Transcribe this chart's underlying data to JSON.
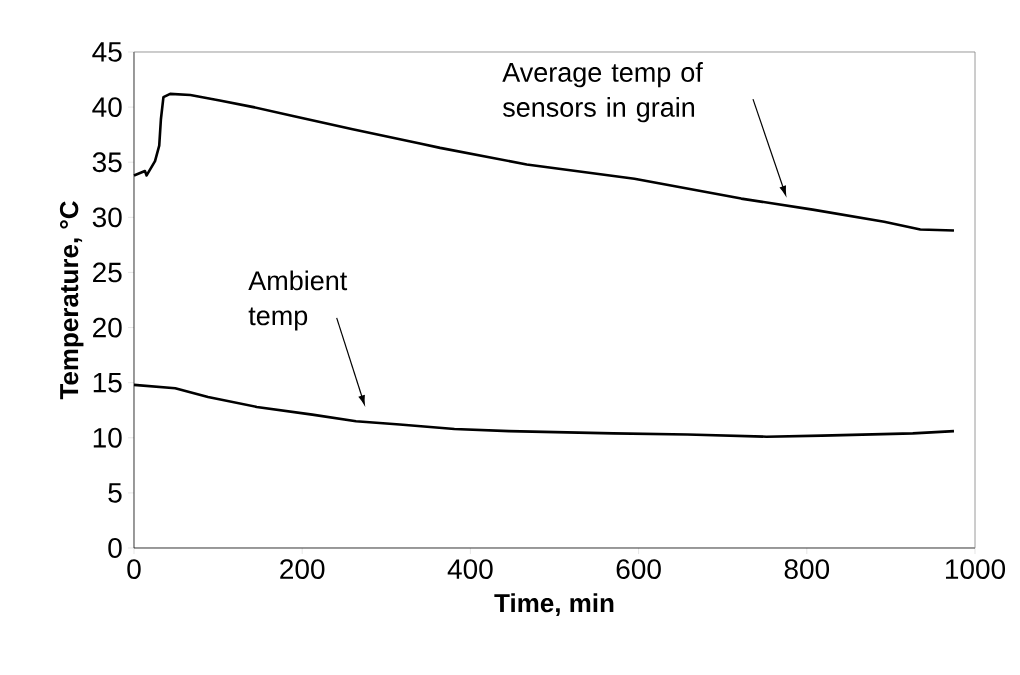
{
  "chart_data": {
    "type": "line",
    "xlabel": "Time, min",
    "ylabel": "Temperature, °C",
    "xlim": [
      0,
      1000
    ],
    "ylim": [
      0,
      45
    ],
    "xticks": [
      0,
      200,
      400,
      600,
      800,
      1000
    ],
    "yticks": [
      0,
      5,
      10,
      15,
      20,
      25,
      30,
      35,
      40,
      45
    ],
    "grid": false,
    "marker": "none",
    "line_style": "solid",
    "series": [
      {
        "color": "#000000",
        "x": [
          0,
          13,
          15,
          25,
          30,
          32,
          35,
          43,
          67,
          102,
          142,
          189,
          260,
          340,
          364,
          467,
          595,
          722,
          807,
          892,
          935,
          975
        ],
        "values": [
          33.8,
          34.2,
          33.8,
          35.1,
          36.5,
          38.9,
          40.9,
          41.2,
          41.1,
          40.6,
          40.0,
          39.2,
          38.0,
          36.7,
          36.3,
          34.8,
          33.5,
          31.7,
          30.7,
          29.6,
          28.9,
          28.8
        ]
      },
      {
        "color": "#000000",
        "x": [
          0,
          49,
          88,
          146,
          212,
          264,
          316,
          381,
          446,
          570,
          658,
          752,
          818,
          926,
          975
        ],
        "values": [
          14.8,
          14.5,
          13.7,
          12.8,
          12.1,
          11.5,
          11.2,
          10.8,
          10.6,
          10.4,
          10.3,
          10.1,
          10.2,
          10.4,
          10.6
        ]
      }
    ],
    "annotations": [
      "Average temp of sensors in grain",
      "Ambient temp"
    ]
  }
}
